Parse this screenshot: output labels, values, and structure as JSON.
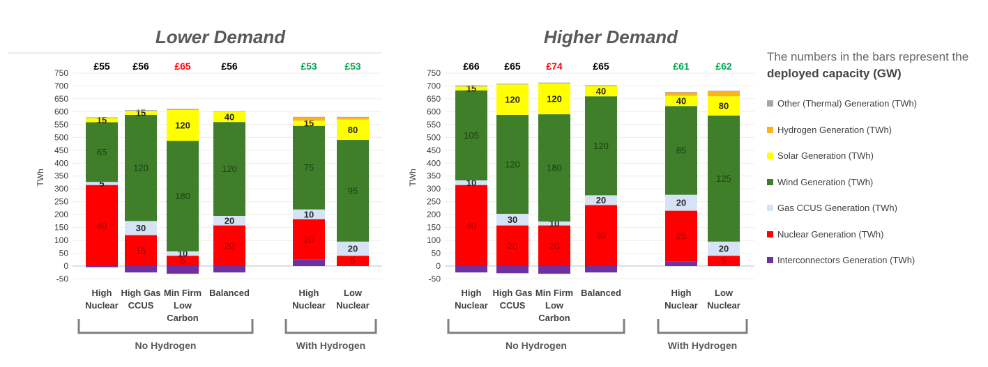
{
  "chart_data": {
    "type": "bar",
    "stacked": true,
    "ylabel": "TWh",
    "ylim": [
      -50,
      750
    ],
    "ytick_step": 50,
    "legend_placement": "right",
    "legend_note": {
      "text_before": "The numbers in the bars represent the ",
      "bold": "deployed capacity (GW)"
    },
    "series": [
      {
        "key": "other",
        "name": "Other (Thermal) Generation (TWh)",
        "color": "#a6a6a6"
      },
      {
        "key": "hydrogen",
        "name": "Hydrogen Generation (TWh)",
        "color": "#ffb31a"
      },
      {
        "key": "solar",
        "name": "Solar Generation (TWh)",
        "color": "#ffff00"
      },
      {
        "key": "wind",
        "name": "Wind Generation (TWh)",
        "color": "#3f7f2a"
      },
      {
        "key": "gas",
        "name": "Gas CCUS Generation (TWh)",
        "color": "#d6e2f5"
      },
      {
        "key": "nuclear",
        "name": "Nuclear Generation (TWh)",
        "color": "#ff0000"
      },
      {
        "key": "interconnectors",
        "name": "Interconnectors Generation (TWh)",
        "color": "#7030a0"
      }
    ],
    "panels": [
      {
        "title": "Lower Demand",
        "groups": [
          {
            "label": "No Hydrogen",
            "scenarios": [
              0,
              1,
              2,
              3
            ]
          },
          {
            "label": "With Hydrogen",
            "scenarios": [
              4,
              5
            ]
          }
        ],
        "scenarios": [
          {
            "label": [
              "High",
              "Nuclear"
            ],
            "cost": "£55",
            "cost_color": "#000000",
            "values": {
              "interconnectors": -5,
              "nuclear": 315,
              "gas": 12,
              "wind": 232,
              "solar": 16,
              "hydrogen": 0,
              "other": 3
            },
            "capacity": {
              "nuclear": "40",
              "gas": "5",
              "wind": "65",
              "solar": "15"
            }
          },
          {
            "label": [
              "High Gas",
              "CCUS"
            ],
            "cost": "£56",
            "cost_color": "#000000",
            "values": {
              "interconnectors": -25,
              "nuclear": 120,
              "gas": 55,
              "wind": 413,
              "solar": 15,
              "hydrogen": 0,
              "other": 3
            },
            "capacity": {
              "nuclear": "15",
              "gas": "30",
              "wind": "120",
              "solar": "15"
            }
          },
          {
            "label": [
              "Min Firm",
              "Low",
              "Carbon"
            ],
            "cost": "£65",
            "cost_color": "#ff0000",
            "values": {
              "interconnectors": -30,
              "nuclear": 40,
              "gas": 17,
              "wind": 430,
              "solar": 120,
              "hydrogen": 0,
              "other": 4
            },
            "capacity": {
              "nuclear": "5",
              "gas": "10",
              "wind": "180",
              "solar": "120"
            }
          },
          {
            "label": [
              "Balanced"
            ],
            "cost": "£56",
            "cost_color": "#000000",
            "values": {
              "interconnectors": -25,
              "nuclear": 158,
              "gas": 37,
              "wind": 365,
              "solar": 40,
              "hydrogen": 0,
              "other": 2
            },
            "capacity": {
              "nuclear": "20",
              "gas": "20",
              "wind": "120",
              "solar": "40"
            }
          },
          {
            "label": [
              "High",
              "Nuclear"
            ],
            "cost": "£53",
            "cost_color": "#00a651",
            "values": {
              "interconnectors": 25,
              "nuclear": 157,
              "gas": 38,
              "wind": 325,
              "solar": 20,
              "hydrogen": 12,
              "other": 3
            },
            "capacity": {
              "interconnectors": "",
              "nuclear": "20",
              "gas": "10",
              "wind": "75",
              "solar": "15"
            }
          },
          {
            "label": [
              "Low",
              "Nuclear"
            ],
            "cost": "£53",
            "cost_color": "#00a651",
            "values": {
              "interconnectors": 0,
              "nuclear": 40,
              "gas": 55,
              "wind": 395,
              "solar": 80,
              "hydrogen": 8,
              "other": 2
            },
            "capacity": {
              "nuclear": "5",
              "gas": "20",
              "wind": "95",
              "solar": "80"
            }
          }
        ]
      },
      {
        "title": "Higher Demand",
        "groups": [
          {
            "label": "No Hydrogen",
            "scenarios": [
              0,
              1,
              2,
              3
            ]
          },
          {
            "label": "With Hydrogen",
            "scenarios": [
              4,
              5
            ]
          }
        ],
        "scenarios": [
          {
            "label": [
              "High",
              "Nuclear"
            ],
            "cost": "£66",
            "cost_color": "#000000",
            "values": {
              "interconnectors": -25,
              "nuclear": 315,
              "gas": 18,
              "wind": 350,
              "solar": 15,
              "hydrogen": 0,
              "other": 4
            },
            "capacity": {
              "nuclear": "40",
              "gas": "10",
              "wind": "105",
              "solar": "15"
            }
          },
          {
            "label": [
              "High Gas",
              "CCUS"
            ],
            "cost": "£65",
            "cost_color": "#000000",
            "values": {
              "interconnectors": -28,
              "nuclear": 158,
              "gas": 45,
              "wind": 385,
              "solar": 118,
              "hydrogen": 0,
              "other": 3
            },
            "capacity": {
              "nuclear": "20",
              "gas": "30",
              "wind": "120",
              "solar": "120"
            }
          },
          {
            "label": [
              "Min Firm",
              "Low",
              "Carbon"
            ],
            "cost": "£74",
            "cost_color": "#ff0000",
            "values": {
              "interconnectors": -30,
              "nuclear": 158,
              "gas": 15,
              "wind": 417,
              "solar": 120,
              "hydrogen": 0,
              "other": 3
            },
            "capacity": {
              "nuclear": "20",
              "gas": "10",
              "wind": "180",
              "solar": "120"
            }
          },
          {
            "label": [
              "Balanced"
            ],
            "cost": "£65",
            "cost_color": "#000000",
            "values": {
              "interconnectors": -25,
              "nuclear": 237,
              "gas": 38,
              "wind": 385,
              "solar": 40,
              "hydrogen": 0,
              "other": 3
            },
            "capacity": {
              "nuclear": "30",
              "gas": "20",
              "wind": "120",
              "solar": "40"
            }
          },
          {
            "label": [
              "High",
              "Nuclear"
            ],
            "cost": "£61",
            "cost_color": "#00a651",
            "values": {
              "interconnectors": 18,
              "nuclear": 197,
              "gas": 62,
              "wind": 345,
              "solar": 40,
              "hydrogen": 12,
              "other": 3
            },
            "capacity": {
              "nuclear": "25",
              "gas": "20",
              "wind": "85",
              "solar": "40"
            }
          },
          {
            "label": [
              "Low",
              "Nuclear"
            ],
            "cost": "£62",
            "cost_color": "#00a651",
            "values": {
              "interconnectors": 0,
              "nuclear": 40,
              "gas": 55,
              "wind": 490,
              "solar": 75,
              "hydrogen": 18,
              "other": 3
            },
            "capacity": {
              "nuclear": "5",
              "gas": "20",
              "wind": "125",
              "solar": "80"
            }
          }
        ]
      }
    ]
  }
}
